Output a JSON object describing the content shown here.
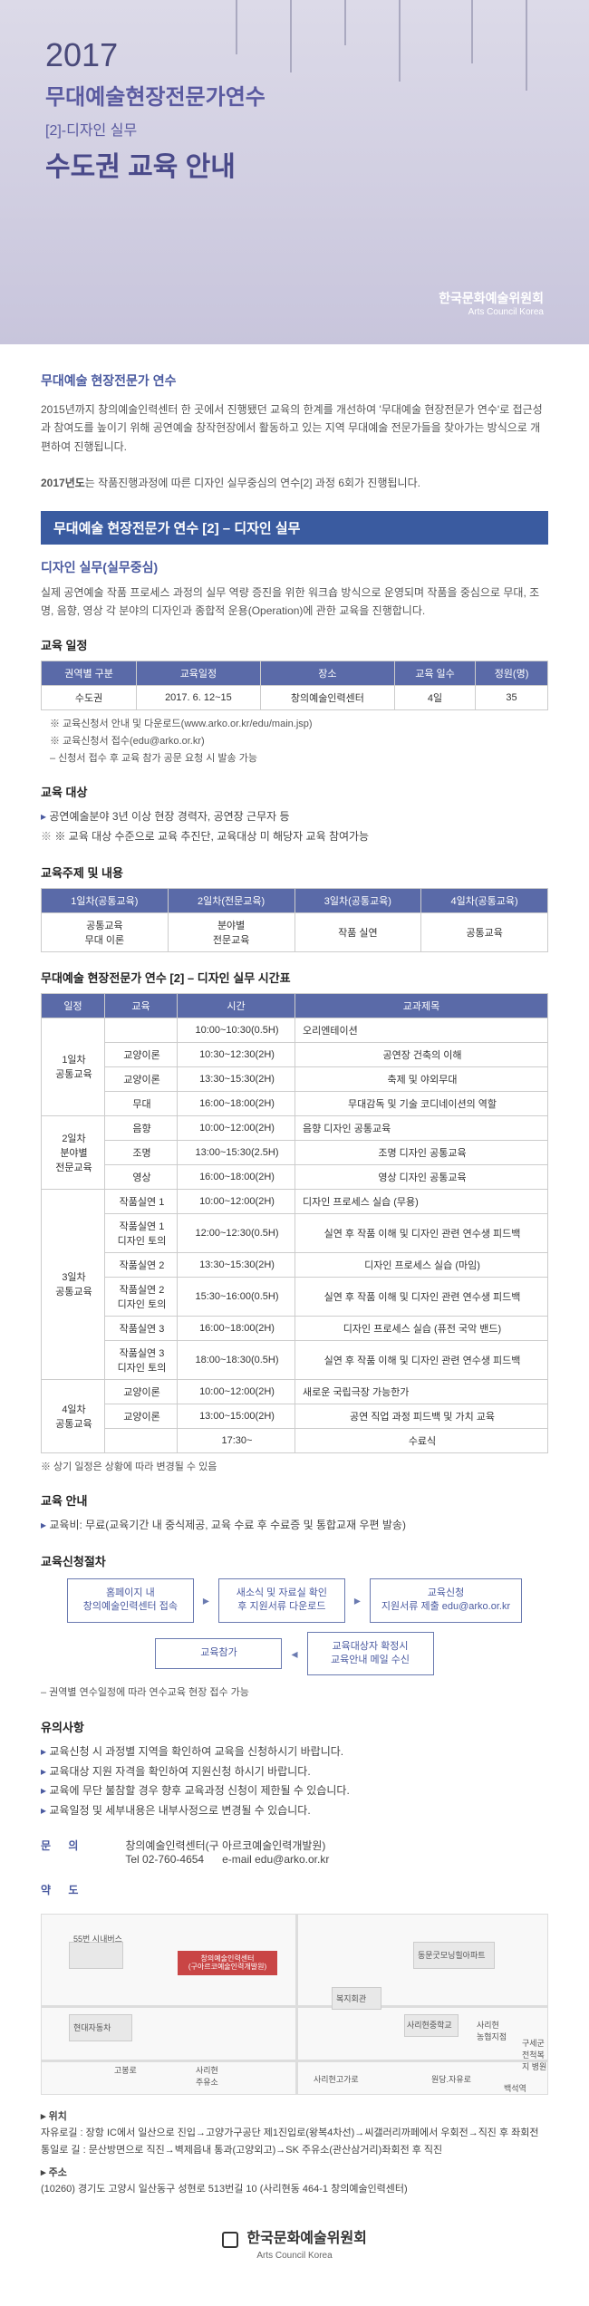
{
  "header": {
    "year": "2017",
    "title1": "무대예술현장전문가연수",
    "subtitle": "[2]-디자인 실무",
    "title2": "수도권 교육 안내",
    "logo_kr": "한국문화예술위원회",
    "logo_en": "Arts Council Korea"
  },
  "intro": {
    "heading": "무대예술 현장전문가 연수",
    "p1": "2015년까지 창의예술인력센터 한 곳에서 진행됐던 교육의 한계를 개선하여 '무대예술 현장전문가 연수'로 접근성과 참여도를 높이기 위해 공연예술 창작현장에서 활동하고 있는 지역 무대예술 전문가들을 찾아가는 방식으로 개편하여 진행됩니다.",
    "p2_prefix": "2017년도",
    "p2_rest": "는 작품진행과정에 따른 디자인 실무중심의 연수[2] 과정 6회가 진행됩니다."
  },
  "blue_bar": "무대예술 현장전문가 연수 [2] – 디자인 실무",
  "design_practice": {
    "heading": "디자인 실무(실무중심)",
    "desc": "실제 공연예술 작품 프로세스 과정의 실무 역량 증진을 위한 워크숍 방식으로 운영되며 작품을 중심으로 무대, 조명, 음향, 영상 각 분야의 디자인과 종합적 운용(Operation)에 관한 교육을 진행합니다."
  },
  "schedule": {
    "heading": "교육 일정",
    "columns": [
      "권역별 구분",
      "교육일정",
      "장소",
      "교육 일수",
      "정원(명)"
    ],
    "row": [
      "수도권",
      "2017. 6. 12~15",
      "창의예술인력센터",
      "4일",
      "35"
    ],
    "notes": [
      "※ 교육신청서 안내 및 다운로드(www.arko.or.kr/edu/main.jsp)",
      "※ 교육신청서 접수(edu@arko.or.kr)",
      "  – 신청서 접수 후 교육 참가 공문 요청 시 발송 가능"
    ]
  },
  "target": {
    "heading": "교육 대상",
    "items": [
      "공연예술분야 3년 이상 현장 경력자, 공연장 근무자 등",
      "※ 교육 대상 수준으로 교육 추진단, 교육대상 미 해당자 교육 참여가능"
    ]
  },
  "topics": {
    "heading": "교육주제 및 내용",
    "cols": [
      "1일차(공통교육)",
      "2일차(전문교육)",
      "3일차(공통교육)",
      "4일차(공통교육)"
    ],
    "row": [
      "공통교육\n무대 이론",
      "분야별\n전문교육",
      "작품 실연",
      "공통교육"
    ]
  },
  "timetable": {
    "heading": "무대예술 현장전문가 연수 [2] – 디자인 실무 시간표",
    "cols": [
      "일정",
      "교육",
      "시간",
      "교과제목"
    ],
    "rows": [
      [
        "1일차\n공통교육",
        "",
        "10:00~10:30(0.5H)",
        "오리엔테이션"
      ],
      [
        "",
        "교양이론",
        "10:30~12:30(2H)",
        "공연장 건축의 이해"
      ],
      [
        "",
        "교양이론",
        "13:30~15:30(2H)",
        "축제 및 야외무대"
      ],
      [
        "",
        "무대",
        "16:00~18:00(2H)",
        "무대감독 및 기술 코디네이션의 역할"
      ],
      [
        "2일차\n분야별\n전문교육",
        "음향",
        "10:00~12:00(2H)",
        "음향 디자인 공통교육"
      ],
      [
        "",
        "조명",
        "13:00~15:30(2.5H)",
        "조명 디자인 공통교육"
      ],
      [
        "",
        "영상",
        "16:00~18:00(2H)",
        "영상 디자인 공통교육"
      ],
      [
        "3일차\n공통교육",
        "작품실연 1",
        "10:00~12:00(2H)",
        "디자인 프로세스 실습 (무용)"
      ],
      [
        "",
        "작품실연 1\n디자인 토의",
        "12:00~12:30(0.5H)",
        "실연 후 작품 이해 및 디자인 관련 연수생 피드백"
      ],
      [
        "",
        "작품실연 2",
        "13:30~15:30(2H)",
        "디자인 프로세스 실습 (마임)"
      ],
      [
        "",
        "작품실연 2\n디자인 토의",
        "15:30~16:00(0.5H)",
        "실연 후 작품 이해 및 디자인 관련 연수생 피드백"
      ],
      [
        "",
        "작품실연 3",
        "16:00~18:00(2H)",
        "디자인 프로세스 실습 (퓨전 국악 밴드)"
      ],
      [
        "",
        "작품실연 3\n디자인 토의",
        "18:00~18:30(0.5H)",
        "실연 후 작품 이해 및 디자인 관련 연수생 피드백"
      ],
      [
        "4일차\n공통교육",
        "교양이론",
        "10:00~12:00(2H)",
        "새로운 국립극장 가능한가"
      ],
      [
        "",
        "교양이론",
        "13:00~15:00(2H)",
        "공연 직업 과정 피드백 및 가치 교육"
      ],
      [
        "",
        "",
        "17:30~",
        "수료식"
      ]
    ],
    "footnote": "※ 상기 일정은 상황에 따라 변경될 수 있음"
  },
  "guide": {
    "heading": "교육 안내",
    "item": "교육비: 무료(교육기간 내 중식제공, 교육 수료 후 수료증 및 통합교재 우편 발송)"
  },
  "apply": {
    "heading": "교육신청절차",
    "steps": [
      "홈페이지 내\n창의예술인력센터 접속",
      "새소식 및 자료실 확인\n후 지원서류 다운로드",
      "교육신청\n지원서류 제출 edu@arko.or.kr",
      "교육참가",
      "교육대상자 확정시\n교육안내 메일 수신"
    ],
    "note": "– 권역별 연수일정에 따라 연수교육 현장 접수 가능"
  },
  "caution": {
    "heading": "유의사항",
    "items": [
      "교육신청 시 과정별 지역을 확인하여 교육을 신청하시기 바랍니다.",
      "교육대상 지원 자격을 확인하여 지원신청 하시기 바랍니다.",
      "교육에 무단 불참할 경우 향후 교육과정 신청이 제한될 수 있습니다.",
      "교육일정 및 세부내용은 내부사정으로 변경될 수 있습니다."
    ]
  },
  "contact": {
    "label": "문    의",
    "org": "창의예술인력센터(구 아르코예술인력개발원)",
    "tel_label": "Tel",
    "tel": "02-760-4654",
    "email_label": "e-mail",
    "email": "edu@arko.or.kr"
  },
  "map": {
    "label": "약    도",
    "labels": {
      "bus55": "55번 시내버스",
      "center_name": "창의예술인력센터\n(구아르코예술인력개발원)",
      "hyundai": "현대자동차",
      "dongmun": "동문굿모닝힐아파트",
      "bokji": "복지회관",
      "sarijung": "사리현중학교",
      "nonghyup": "사리현\n농협지점",
      "salvation": "구세군\n전척복지 병원",
      "gobongro": "고봉로",
      "sarihyeon": "사리현\n주유소",
      "sarigogae": "사리현고가로",
      "wondang": "원당.자유로",
      "baekseok": "백석역"
    }
  },
  "location": {
    "heading_loc": "위치",
    "route1_label": "자유로길 :",
    "route1": " 장항 IC에서 일산으로 진입→고양가구공단 제1진입로(왕복4차선)→씨갤러리까페에서 우회전→직진 후 좌회전",
    "route2_label": "통일로 길 :",
    "route2": " 문산방면으로 직진→벽제읍내 통과(고양외고)→SK 주유소(관산삼거리)좌회전 후 직진",
    "heading_addr": "주소",
    "addr": "(10260) 경기도 고양시 일산동구 성현로 513번길 10 (사리현동 464-1 창의예술인력센터)"
  },
  "footer": {
    "kr": "한국문화예술위원회",
    "en": "Arts Council Korea"
  },
  "colors": {
    "header_bg_top": "#dcdae8",
    "header_bg_bottom": "#c8c5dc",
    "accent_blue": "#4a5aa0",
    "bar_blue": "#3a5ba0",
    "table_header": "#5a6aa8",
    "text": "#333"
  }
}
